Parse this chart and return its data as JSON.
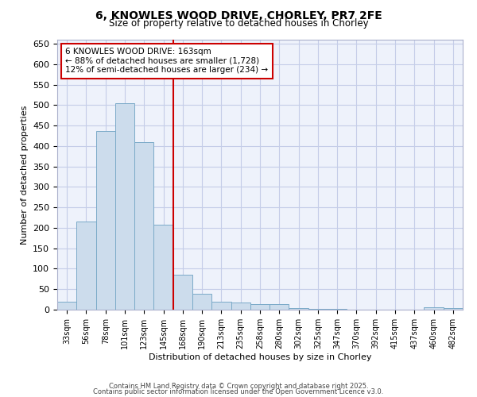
{
  "title": "6, KNOWLES WOOD DRIVE, CHORLEY, PR7 2FE",
  "subtitle": "Size of property relative to detached houses in Chorley",
  "xlabel": "Distribution of detached houses by size in Chorley",
  "ylabel": "Number of detached properties",
  "categories": [
    "33sqm",
    "56sqm",
    "78sqm",
    "101sqm",
    "123sqm",
    "145sqm",
    "168sqm",
    "190sqm",
    "213sqm",
    "235sqm",
    "258sqm",
    "280sqm",
    "302sqm",
    "325sqm",
    "347sqm",
    "370sqm",
    "392sqm",
    "415sqm",
    "437sqm",
    "460sqm",
    "482sqm"
  ],
  "values": [
    20,
    215,
    437,
    505,
    410,
    208,
    85,
    38,
    20,
    18,
    13,
    13,
    4,
    2,
    1,
    0,
    0,
    0,
    0,
    5,
    3
  ],
  "bar_color": "#ccdcec",
  "bar_edge_color": "#7aaac8",
  "marker_line_index": 6,
  "marker_label": "6 KNOWLES WOOD DRIVE: 163sqm",
  "annotation_line1": "← 88% of detached houses are smaller (1,728)",
  "annotation_line2": "12% of semi-detached houses are larger (234) →",
  "marker_line_color": "#cc0000",
  "background_color": "#eef2fb",
  "grid_color": "#c5cde8",
  "ylim": [
    0,
    660
  ],
  "yticks": [
    0,
    50,
    100,
    150,
    200,
    250,
    300,
    350,
    400,
    450,
    500,
    550,
    600,
    650
  ],
  "footer_line1": "Contains HM Land Registry data © Crown copyright and database right 2025.",
  "footer_line2": "Contains public sector information licensed under the Open Government Licence v3.0."
}
